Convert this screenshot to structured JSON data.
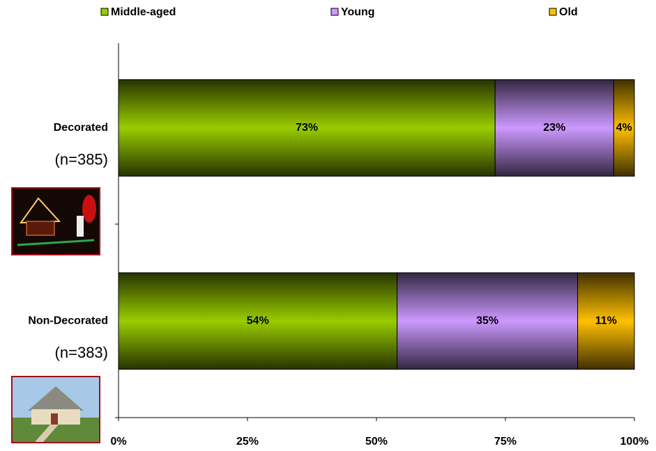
{
  "chart_data": {
    "type": "stacked-barh",
    "categories": [
      "Decorated",
      "Non-Decorated"
    ],
    "category_notes": [
      "(n=385)",
      "(n=383)"
    ],
    "series": [
      {
        "name": "Middle-aged",
        "color": "#99cc00",
        "values": [
          73,
          54
        ],
        "value_labels": [
          "73%",
          "54%"
        ]
      },
      {
        "name": "Young",
        "color": "#cc99ff",
        "values": [
          23,
          35
        ],
        "value_labels": [
          "23%",
          "35%"
        ]
      },
      {
        "name": "Old",
        "color": "#ffc000",
        "values": [
          4,
          11
        ],
        "value_labels": [
          "4%",
          "11%"
        ]
      }
    ],
    "xlim": [
      0,
      100
    ],
    "xticks": [
      {
        "value": 0,
        "label": "0%"
      },
      {
        "value": 25,
        "label": "25%"
      },
      {
        "value": 50,
        "label": "50%"
      },
      {
        "value": 75,
        "label": "75%"
      },
      {
        "value": 100,
        "label": "100%"
      }
    ],
    "legend": "top"
  }
}
